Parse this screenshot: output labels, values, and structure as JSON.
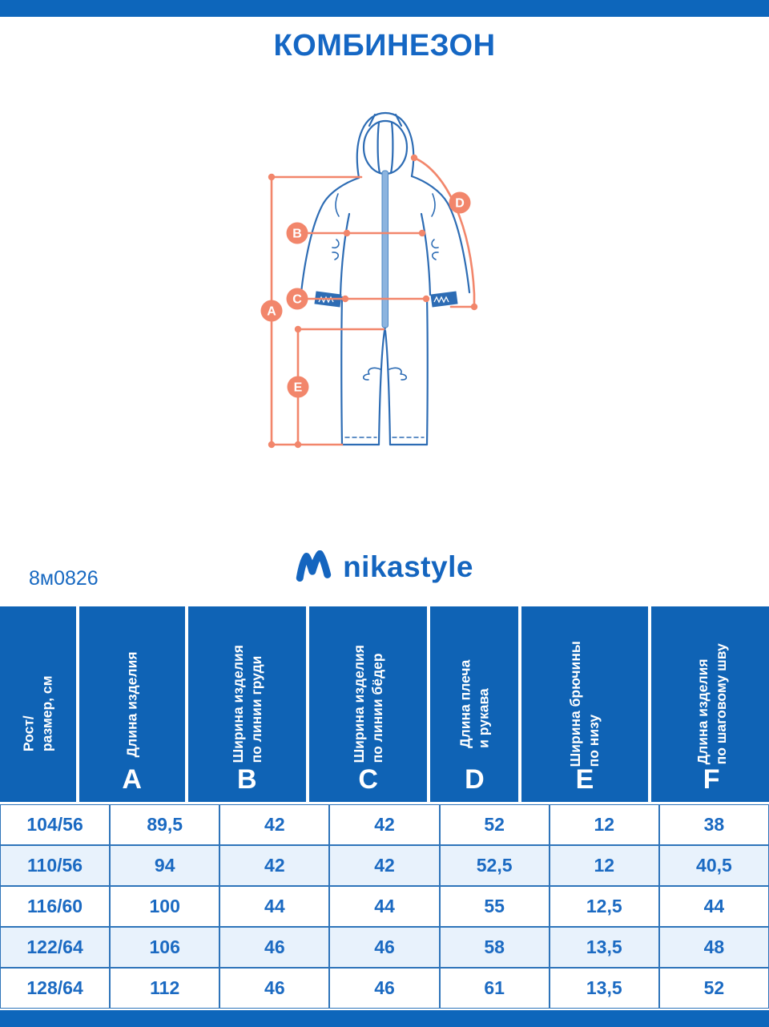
{
  "header": {
    "title": "КОМБИНЕЗОН"
  },
  "brand": {
    "logo_text": "nikastyle",
    "product_code": "8м0826"
  },
  "diagram": {
    "labels": [
      "A",
      "B",
      "C",
      "D",
      "E"
    ]
  },
  "colors": {
    "top_bottom_bar": "#0d66bb",
    "title_blue": "#1567c4",
    "table_header_blue": "#0f63b5",
    "cell_text_blue": "#1b6ac2",
    "row_alt_blue": "#e8f2fc",
    "border_blue": "#2e74ba",
    "accent_salmon": "#f2866b",
    "garment_outline_blue": "#2d6cb4",
    "zipper_fill_blue": "#8cb4df",
    "logo_blue": "#1465bf"
  },
  "table": {
    "columns": [
      {
        "id": "size",
        "lines": [
          "Рост/",
          "размер, см"
        ],
        "letter": ""
      },
      {
        "id": "A",
        "lines": [
          "Длина изделия"
        ],
        "letter": "A"
      },
      {
        "id": "B",
        "lines": [
          "Ширина изделия",
          "по линии груди"
        ],
        "letter": "B"
      },
      {
        "id": "C",
        "lines": [
          "Ширина изделия",
          "по линии бёдер"
        ],
        "letter": "C"
      },
      {
        "id": "D",
        "lines": [
          "Длина плеча",
          "и рукава"
        ],
        "letter": "D"
      },
      {
        "id": "E",
        "lines": [
          "Ширина брючины",
          "по низу"
        ],
        "letter": "E"
      },
      {
        "id": "F",
        "lines": [
          "Длина изделия",
          "по шаговому шву"
        ],
        "letter": "F"
      }
    ],
    "rows": [
      [
        "104/56",
        "89,5",
        "42",
        "42",
        "52",
        "12",
        "38"
      ],
      [
        "110/56",
        "94",
        "42",
        "42",
        "52,5",
        "12",
        "40,5"
      ],
      [
        "116/60",
        "100",
        "44",
        "44",
        "55",
        "12,5",
        "44"
      ],
      [
        "122/64",
        "106",
        "46",
        "46",
        "58",
        "13,5",
        "48"
      ],
      [
        "128/64",
        "112",
        "46",
        "46",
        "61",
        "13,5",
        "52"
      ]
    ]
  }
}
